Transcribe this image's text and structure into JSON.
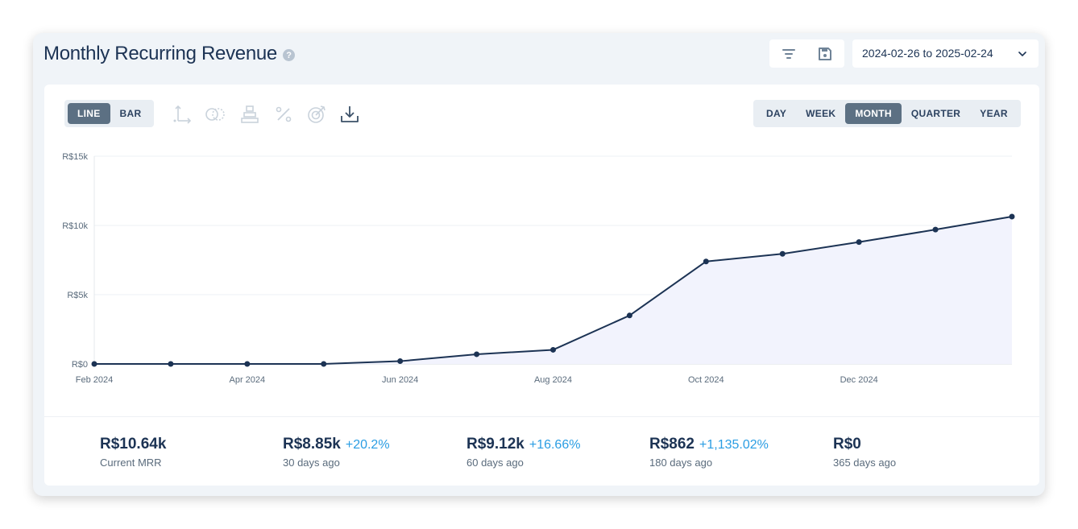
{
  "header": {
    "title": "Monthly Recurring Revenue",
    "help_icon": "question-circle-icon",
    "icons": [
      "filter-icon",
      "save-icon"
    ],
    "date_range": "2024-02-26 to 2025-02-24"
  },
  "toolbar": {
    "chart_types": [
      {
        "label": "LINE",
        "active": true
      },
      {
        "label": "BAR",
        "active": false
      }
    ],
    "tools": [
      "axis-icon",
      "compare-icon",
      "stack-icon",
      "percent-icon",
      "goal-icon",
      "download-icon"
    ],
    "periods": [
      {
        "label": "DAY",
        "active": false
      },
      {
        "label": "WEEK",
        "active": false
      },
      {
        "label": "MONTH",
        "active": true
      },
      {
        "label": "QUARTER",
        "active": false
      },
      {
        "label": "YEAR",
        "active": false
      }
    ]
  },
  "chart_data": {
    "type": "area",
    "x_labels": [
      "Feb 2024",
      "Apr 2024",
      "Jun 2024",
      "Aug 2024",
      "Oct 2024",
      "Dec 2024"
    ],
    "y_ticks": [
      "R$0",
      "R$5k",
      "R$10k",
      "R$15k"
    ],
    "ylim": [
      0,
      15000
    ],
    "x": [
      "2024-02",
      "2024-03",
      "2024-04",
      "2024-05",
      "2024-06",
      "2024-07",
      "2024-08",
      "2024-09",
      "2024-10",
      "2024-11",
      "2024-12",
      "2025-01",
      "2025-02"
    ],
    "values": [
      0,
      0,
      0,
      0,
      200,
      700,
      1020,
      3500,
      7400,
      7950,
      8800,
      9700,
      10640
    ],
    "line_color": "#1c3354",
    "fill_color": "#f2f3fd",
    "grid": true
  },
  "stats": [
    {
      "value": "R$10.64k",
      "delta": "",
      "label": "Current MRR"
    },
    {
      "value": "R$8.85k",
      "delta": "+20.2%",
      "label": "30 days ago"
    },
    {
      "value": "R$9.12k",
      "delta": "+16.66%",
      "label": "60 days ago"
    },
    {
      "value": "R$862",
      "delta": "+1,135.02%",
      "label": "180 days ago"
    },
    {
      "value": "R$0",
      "delta": "",
      "label": "365 days ago"
    }
  ]
}
